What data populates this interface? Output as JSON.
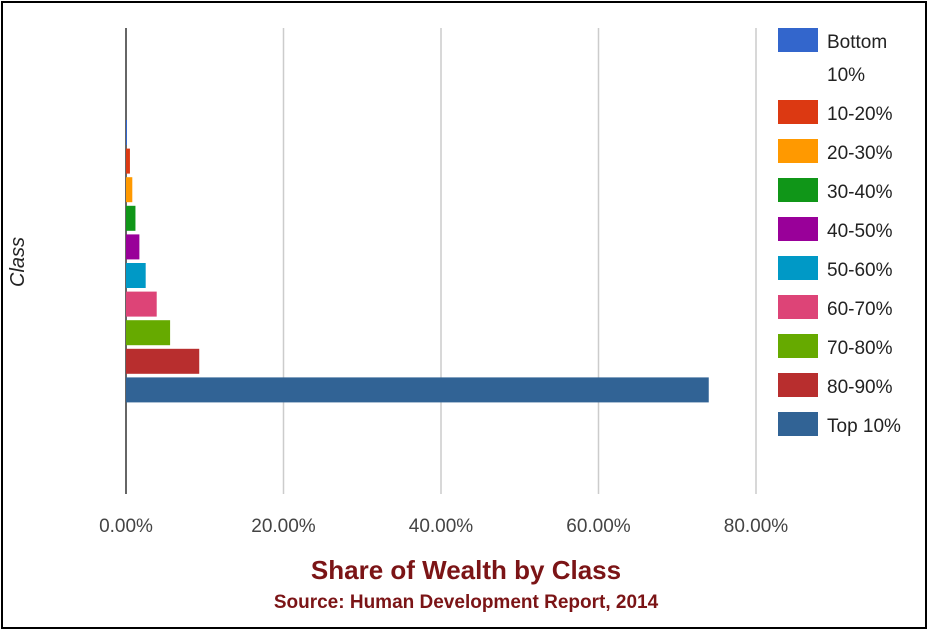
{
  "chart_data": {
    "type": "bar",
    "orientation": "horizontal",
    "title": "Share of Wealth by Class",
    "subtitle": "Source: Human Development Report, 2014",
    "ylabel": "Class",
    "xlabel": "",
    "xlim": [
      0,
      80
    ],
    "x_ticks": [
      0,
      20,
      40,
      60,
      80
    ],
    "x_tick_labels": [
      "0.00%",
      "20.00%",
      "40.00%",
      "60.00%",
      "80.00%"
    ],
    "grid": "vertical",
    "legend_position": "right",
    "series": [
      {
        "name": "Bottom 10%",
        "value": 0.1,
        "color": "#3366cc"
      },
      {
        "name": "10-20%",
        "value": 0.5,
        "color": "#dc3912"
      },
      {
        "name": "20-30%",
        "value": 0.8,
        "color": "#ff9900"
      },
      {
        "name": "30-40%",
        "value": 1.2,
        "color": "#109618"
      },
      {
        "name": "40-50%",
        "value": 1.7,
        "color": "#990099"
      },
      {
        "name": "50-60%",
        "value": 2.5,
        "color": "#0099c6"
      },
      {
        "name": "60-70%",
        "value": 3.9,
        "color": "#dd4477"
      },
      {
        "name": "70-80%",
        "value": 5.6,
        "color": "#66aa00"
      },
      {
        "name": "80-90%",
        "value": 9.3,
        "color": "#b82e2e"
      },
      {
        "name": "Top 10%",
        "value": 74.0,
        "color": "#316395"
      }
    ]
  }
}
